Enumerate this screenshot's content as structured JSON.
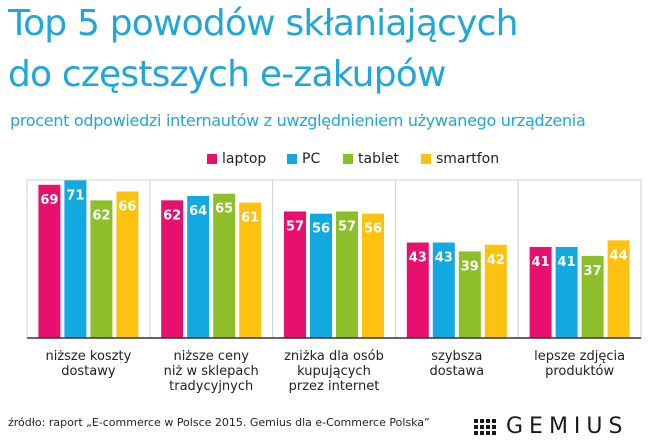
{
  "header": {
    "title_line1": "Top 5 powodów skłaniających",
    "title_line2": "do częstszych e-zakupów",
    "subtitle": "procent odpowiedzi internautów z uwzględnieniem używanego urządzenia"
  },
  "footer": {
    "source": "źródło: raport „E-commerce w Polsce 2015. Gemius dla e-Commerce Polska”",
    "logo_text": "GEMIUS"
  },
  "chart_data": {
    "type": "bar",
    "title": "Top 5 powodów skłaniających do częstszych e-zakupów",
    "subtitle": "procent odpowiedzi internautów z uwzględnieniem używanego urządzenia",
    "categories": [
      [
        "niższe koszty",
        "dostawy"
      ],
      [
        "niższe ceny",
        "niż w sklepach",
        "tradycyjnych"
      ],
      [
        "zniżka dla osób",
        "kupujących",
        "przez internet"
      ],
      [
        "szybsza",
        "dostawa"
      ],
      [
        "lepsze zdjęcia",
        "produktów"
      ]
    ],
    "series": [
      {
        "name": "laptop",
        "color": "#e8106e",
        "values": [
          69,
          62,
          57,
          43,
          41
        ]
      },
      {
        "name": "PC",
        "color": "#12a8e0",
        "values": [
          71,
          64,
          56,
          43,
          41
        ]
      },
      {
        "name": "tablet",
        "color": "#8cbf2a",
        "values": [
          62,
          65,
          57,
          39,
          37
        ]
      },
      {
        "name": "smartfon",
        "color": "#fcc20f",
        "values": [
          66,
          61,
          56,
          42,
          44
        ]
      }
    ],
    "legend_position": "top-center",
    "grid": false,
    "ylim": [
      0,
      100
    ]
  }
}
